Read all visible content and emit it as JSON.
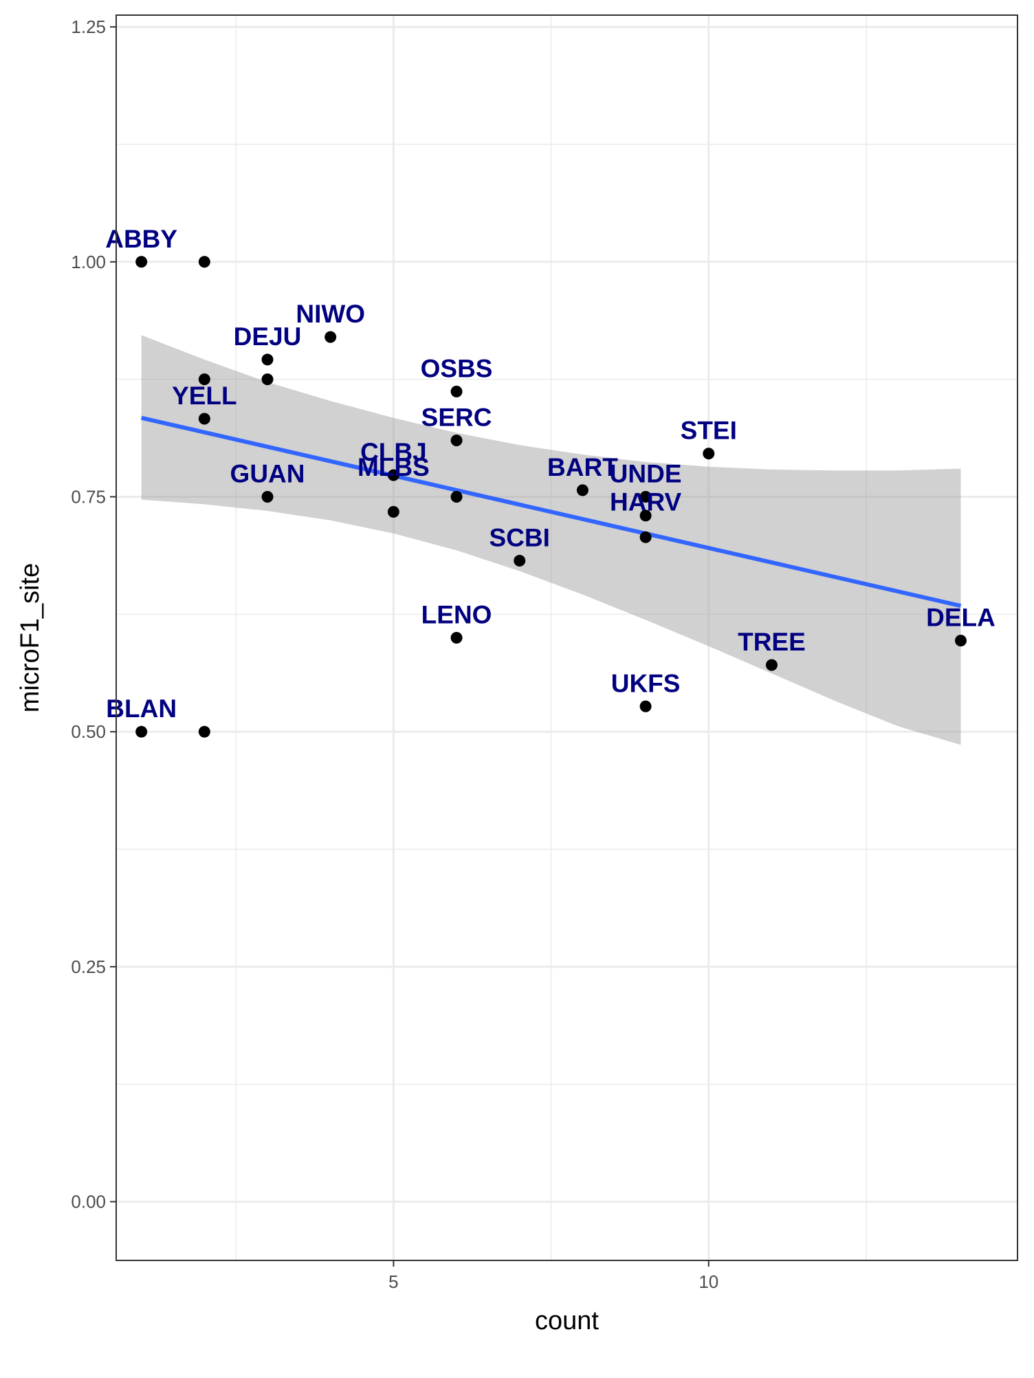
{
  "chart_data": {
    "type": "scatter",
    "title": "",
    "xlabel": "count",
    "ylabel": "microF1_site",
    "xlim": [
      0.6,
      14.9
    ],
    "ylim": [
      -0.0625,
      1.2625
    ],
    "x_ticks": [
      5,
      10
    ],
    "x_tick_labels": [
      "5",
      "10"
    ],
    "y_ticks": [
      0,
      0.25,
      0.5,
      0.75,
      1.0,
      1.25
    ],
    "y_tick_labels": [
      "0.00",
      "0.25",
      "0.50",
      "0.75",
      "1.00",
      "1.25"
    ],
    "grid": true,
    "points": [
      {
        "x": 1,
        "y": 1.0
      },
      {
        "x": 2,
        "y": 1.0
      },
      {
        "x": 4,
        "y": 0.92
      },
      {
        "x": 3,
        "y": 0.896
      },
      {
        "x": 2,
        "y": 0.875
      },
      {
        "x": 3,
        "y": 0.875
      },
      {
        "x": 6,
        "y": 0.862
      },
      {
        "x": 2,
        "y": 0.833
      },
      {
        "x": 6,
        "y": 0.81
      },
      {
        "x": 10,
        "y": 0.796
      },
      {
        "x": 5,
        "y": 0.773
      },
      {
        "x": 3,
        "y": 0.75
      },
      {
        "x": 6,
        "y": 0.75
      },
      {
        "x": 8,
        "y": 0.757
      },
      {
        "x": 9,
        "y": 0.75
      },
      {
        "x": 9,
        "y": 0.73
      },
      {
        "x": 5,
        "y": 0.734
      },
      {
        "x": 9,
        "y": 0.707
      },
      {
        "x": 7,
        "y": 0.682
      },
      {
        "x": 6,
        "y": 0.6
      },
      {
        "x": 14,
        "y": 0.597
      },
      {
        "x": 11,
        "y": 0.571
      },
      {
        "x": 9,
        "y": 0.527
      },
      {
        "x": 1,
        "y": 0.5
      },
      {
        "x": 2,
        "y": 0.5
      }
    ],
    "labels": [
      {
        "text": "ABBY",
        "x": 1,
        "y": 1.0
      },
      {
        "text": "NIWO",
        "x": 4,
        "y": 0.92
      },
      {
        "text": "DEJU",
        "x": 3,
        "y": 0.896
      },
      {
        "text": "OSBS",
        "x": 6,
        "y": 0.862
      },
      {
        "text": "YELL",
        "x": 2,
        "y": 0.833
      },
      {
        "text": "SERC",
        "x": 6,
        "y": 0.81
      },
      {
        "text": "STEI",
        "x": 10,
        "y": 0.796
      },
      {
        "text": "CLBJ",
        "x": 5,
        "y": 0.773
      },
      {
        "text": "BART",
        "x": 8,
        "y": 0.757
      },
      {
        "text": "GUAN",
        "x": 3,
        "y": 0.75
      },
      {
        "text": "MLBS",
        "x": 5,
        "y": 0.757
      },
      {
        "text": "UNDE",
        "x": 9,
        "y": 0.75
      },
      {
        "text": "HARV",
        "x": 9,
        "y": 0.72
      },
      {
        "text": "SCBI",
        "x": 7,
        "y": 0.682
      },
      {
        "text": "LENO",
        "x": 6,
        "y": 0.6
      },
      {
        "text": "DELA",
        "x": 14,
        "y": 0.597
      },
      {
        "text": "TREE",
        "x": 11,
        "y": 0.571
      },
      {
        "text": "UKFS",
        "x": 9,
        "y": 0.527
      },
      {
        "text": "BLAN",
        "x": 1,
        "y": 0.5
      }
    ],
    "trend_line": {
      "method": "lm",
      "x": [
        1,
        14
      ],
      "y": [
        0.834,
        0.634
      ],
      "color": "#3366FF"
    },
    "confidence_band": {
      "x": [
        1,
        2,
        3,
        4,
        5,
        6,
        7,
        8,
        9,
        10,
        11,
        12,
        13,
        14
      ],
      "upper": [
        0.922,
        0.896,
        0.872,
        0.852,
        0.834,
        0.818,
        0.805,
        0.795,
        0.787,
        0.782,
        0.779,
        0.778,
        0.778,
        0.78
      ],
      "lower": [
        0.747,
        0.742,
        0.735,
        0.725,
        0.711,
        0.693,
        0.671,
        0.646,
        0.619,
        0.591,
        0.562,
        0.533,
        0.506,
        0.486
      ],
      "color": "#999999"
    },
    "colors": {
      "point": "#000000",
      "label": "#000080",
      "grid": "#EBEBEB",
      "panel_border": "#333333",
      "band": "#999999",
      "line": "#3366FF"
    }
  }
}
